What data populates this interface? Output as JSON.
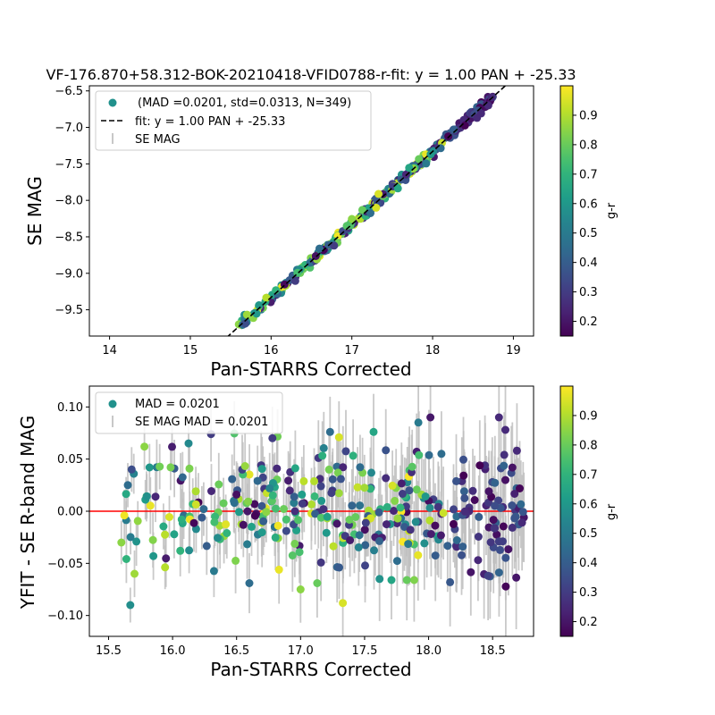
{
  "chart_data": [
    {
      "type": "scatter",
      "title": "VF-176.870+58.312-BOK-20210418-VFID0788-r-fit: y = 1.00 PAN + -25.33",
      "xlabel": "Pan-STARRS Corrected",
      "ylabel": "SE MAG",
      "xlim": [
        13.75,
        19.25
      ],
      "ylim": [
        -9.86,
        -6.43
      ],
      "xticks": [
        "14",
        "15",
        "16",
        "17",
        "18",
        "19"
      ],
      "xtick_values": [
        14,
        15,
        16,
        17,
        18,
        19
      ],
      "yticks": [
        "−6.5",
        "−7.0",
        "−7.5",
        "−8.0",
        "−8.5",
        "−9.0",
        "−9.5"
      ],
      "ytick_values": [
        -6.5,
        -7.0,
        -7.5,
        -8.0,
        -8.5,
        -9.0,
        -9.5
      ],
      "fit": {
        "slope": 1.0,
        "intercept": -25.33,
        "color": "#000000",
        "style": "dashed"
      },
      "legend": {
        "placement": "upper-left",
        "entries": [
          "(MAD =0.0201, std=0.0313, N=349)",
          "fit: y = 1.00 PAN + -25.33",
          "SE MAG"
        ]
      },
      "colorbar": {
        "label": "g-r",
        "range": [
          0.15,
          1.0
        ],
        "ticks": [
          "0.2",
          "0.3",
          "0.4",
          "0.5",
          "0.6",
          "0.7",
          "0.8",
          "0.9"
        ],
        "tick_values": [
          0.2,
          0.3,
          0.4,
          0.5,
          0.6,
          0.7,
          0.8,
          0.9
        ],
        "cmap": "viridis"
      },
      "n_points": 349,
      "x_range_of_points": [
        15.6,
        18.75
      ],
      "residual_mad": 0.0201,
      "residual_std": 0.0313
    },
    {
      "type": "scatter",
      "xlabel": "Pan-STARRS Corrected",
      "ylabel": "YFIT - SE R-band MAG",
      "xlim": [
        15.35,
        18.82
      ],
      "ylim": [
        -0.12,
        0.12
      ],
      "xticks": [
        "15.5",
        "16.0",
        "16.5",
        "17.0",
        "17.5",
        "18.0",
        "18.5"
      ],
      "xtick_values": [
        15.5,
        16.0,
        16.5,
        17.0,
        17.5,
        18.0,
        18.5
      ],
      "yticks": [
        "0.10",
        "0.05",
        "0.00",
        "−0.05",
        "−0.10"
      ],
      "ytick_values": [
        0.1,
        0.05,
        0.0,
        -0.05,
        -0.1
      ],
      "hline": {
        "y": 0.0,
        "color": "#ff0000"
      },
      "legend": {
        "placement": "upper-left",
        "entries": [
          "MAD = 0.0201",
          "SE MAG MAD = 0.0201"
        ]
      },
      "colorbar": {
        "label": "g-r",
        "range": [
          0.15,
          1.0
        ],
        "ticks": [
          "0.2",
          "0.3",
          "0.4",
          "0.5",
          "0.6",
          "0.7",
          "0.8",
          "0.9"
        ],
        "tick_values": [
          0.2,
          0.3,
          0.4,
          0.5,
          0.6,
          0.7,
          0.8,
          0.9
        ],
        "cmap": "viridis"
      },
      "sample_points": [
        {
          "x": 15.6,
          "y": -0.03,
          "c": 0.85
        },
        {
          "x": 15.65,
          "y": 0.025,
          "c": 0.45
        },
        {
          "x": 15.68,
          "y": 0.04,
          "c": 0.35
        },
        {
          "x": 15.78,
          "y": 0.062,
          "c": 0.85
        },
        {
          "x": 15.82,
          "y": 0.042,
          "c": 0.6
        },
        {
          "x": 15.85,
          "y": -0.043,
          "c": 0.6
        },
        {
          "x": 16.06,
          "y": -0.038,
          "c": 0.7
        },
        {
          "x": 16.3,
          "y": 0.074,
          "c": 0.3
        },
        {
          "x": 16.6,
          "y": -0.069,
          "c": 0.45
        },
        {
          "x": 16.78,
          "y": 0.07,
          "c": 0.3
        },
        {
          "x": 17.0,
          "y": -0.075,
          "c": 0.85
        },
        {
          "x": 17.13,
          "y": -0.069,
          "c": 0.8
        },
        {
          "x": 17.23,
          "y": 0.076,
          "c": 0.45
        },
        {
          "x": 17.3,
          "y": 0.071,
          "c": 0.95
        },
        {
          "x": 17.33,
          "y": -0.088,
          "c": 0.95
        },
        {
          "x": 17.57,
          "y": 0.076,
          "c": 0.65
        },
        {
          "x": 17.71,
          "y": -0.066,
          "c": 0.65
        },
        {
          "x": 17.83,
          "y": -0.066,
          "c": 0.8
        },
        {
          "x": 17.92,
          "y": 0.085,
          "c": 0.5
        },
        {
          "x": 18.1,
          "y": 0.055,
          "c": 0.45
        },
        {
          "x": 18.4,
          "y": 0.044,
          "c": 0.15
        },
        {
          "x": 18.55,
          "y": 0.09,
          "c": 0.25
        },
        {
          "x": 18.6,
          "y": 0.078,
          "c": 0.25
        },
        {
          "x": 18.69,
          "y": 0.058,
          "c": 0.25
        },
        {
          "x": 18.73,
          "y": -0.011,
          "c": 0.25
        }
      ],
      "n_points": 349
    }
  ]
}
